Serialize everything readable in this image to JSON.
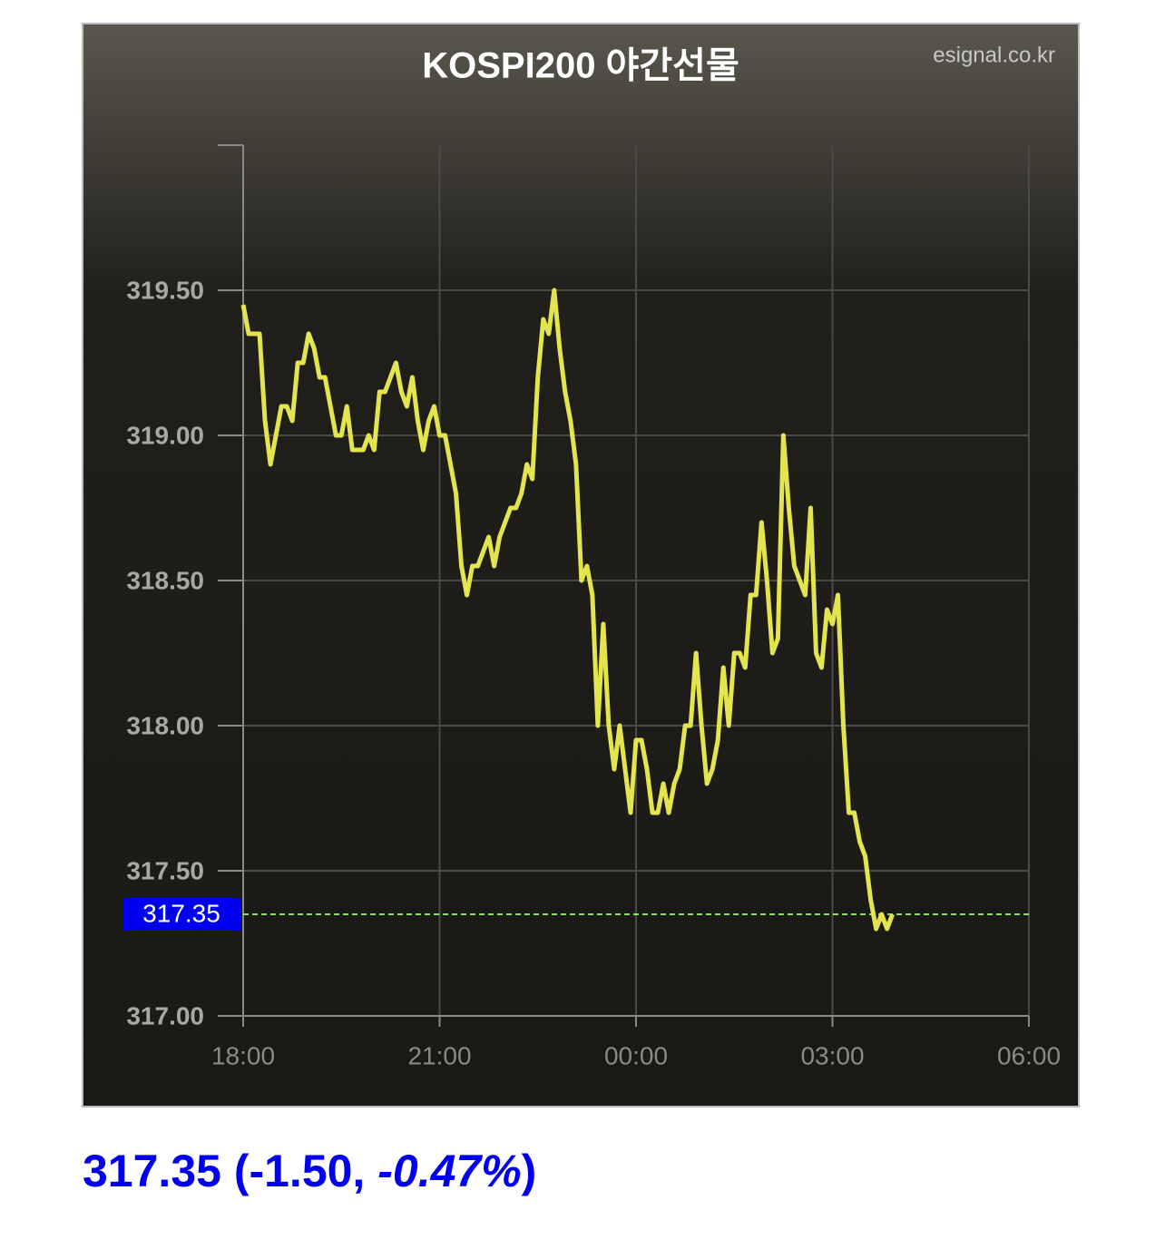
{
  "chart_data": {
    "type": "line",
    "title": "KOSPI200 야간선물",
    "source": "esignal.co.kr",
    "x": [
      "18:00",
      "18:05",
      "18:10",
      "18:15",
      "18:20",
      "18:25",
      "18:30",
      "18:35",
      "18:40",
      "18:45",
      "18:50",
      "18:55",
      "19:00",
      "19:05",
      "19:10",
      "19:15",
      "19:20",
      "19:25",
      "19:30",
      "19:35",
      "19:40",
      "19:45",
      "19:50",
      "19:55",
      "20:00",
      "20:05",
      "20:10",
      "20:15",
      "20:20",
      "20:25",
      "20:30",
      "20:35",
      "20:40",
      "20:45",
      "20:50",
      "20:55",
      "21:00",
      "21:05",
      "21:10",
      "21:15",
      "21:20",
      "21:25",
      "21:30",
      "21:35",
      "21:40",
      "21:45",
      "21:50",
      "21:55",
      "22:00",
      "22:05",
      "22:10",
      "22:15",
      "22:20",
      "22:25",
      "22:30",
      "22:35",
      "22:40",
      "22:45",
      "22:50",
      "22:55",
      "23:00",
      "23:05",
      "23:10",
      "23:15",
      "23:20",
      "23:25",
      "23:30",
      "23:35",
      "23:40",
      "23:45",
      "23:50",
      "23:55",
      "00:00",
      "00:05",
      "00:10",
      "00:15",
      "00:20",
      "00:25",
      "00:30",
      "00:35",
      "00:40",
      "00:45",
      "00:50",
      "00:55",
      "01:00",
      "01:05",
      "01:10",
      "01:15",
      "01:20",
      "01:25",
      "01:30",
      "01:35",
      "01:40",
      "01:45",
      "01:50",
      "01:55",
      "02:00",
      "02:05",
      "02:10",
      "02:15",
      "02:20",
      "02:25",
      "02:30",
      "02:35",
      "02:40",
      "02:45",
      "02:50",
      "02:55",
      "03:00",
      "03:05",
      "03:10",
      "03:15",
      "03:20",
      "03:25",
      "03:30",
      "03:35",
      "03:40",
      "03:45",
      "03:50",
      "03:55"
    ],
    "series": [
      {
        "color": "#e4e44e",
        "values": [
          319.45,
          319.35,
          319.35,
          319.35,
          319.05,
          318.9,
          319.0,
          319.1,
          319.1,
          319.05,
          319.25,
          319.25,
          319.35,
          319.3,
          319.2,
          319.2,
          319.1,
          319.0,
          319.0,
          319.1,
          318.95,
          318.95,
          318.95,
          319.0,
          318.95,
          319.15,
          319.15,
          319.2,
          319.25,
          319.15,
          319.1,
          319.2,
          319.05,
          318.95,
          319.05,
          319.1,
          319.0,
          319.0,
          318.9,
          318.8,
          318.55,
          318.45,
          318.55,
          318.55,
          318.6,
          318.65,
          318.55,
          318.65,
          318.7,
          318.75,
          318.75,
          318.8,
          318.9,
          318.85,
          319.2,
          319.4,
          319.35,
          319.5,
          319.3,
          319.15,
          319.05,
          318.9,
          318.5,
          318.55,
          318.45,
          318.0,
          318.35,
          318.0,
          317.85,
          318.0,
          317.85,
          317.7,
          317.95,
          317.95,
          317.85,
          317.7,
          317.7,
          317.8,
          317.7,
          317.8,
          317.85,
          318.0,
          318.0,
          318.25,
          318.0,
          317.8,
          317.85,
          317.95,
          318.2,
          318.0,
          318.25,
          318.25,
          318.2,
          318.45,
          318.45,
          318.7,
          318.5,
          318.25,
          318.3,
          319.0,
          318.75,
          318.55,
          318.5,
          318.45,
          318.75,
          318.25,
          318.2,
          318.4,
          318.35,
          318.45,
          318.0,
          317.7,
          317.7,
          317.6,
          317.55,
          317.4,
          317.3,
          317.35,
          317.3,
          317.35
        ]
      }
    ],
    "xlim": [
      "18:00",
      "06:00"
    ],
    "xticks": [
      "18:00",
      "21:00",
      "00:00",
      "03:00",
      "06:00"
    ],
    "ylim": [
      317,
      320
    ],
    "yticks": [
      {
        "value": 317,
        "label": "317.00"
      },
      {
        "value": 317.5,
        "label": "317.50"
      },
      {
        "value": 318,
        "label": "318.00"
      },
      {
        "value": 318.5,
        "label": "318.50"
      },
      {
        "value": 319,
        "label": "319.00"
      },
      {
        "value": 319.5,
        "label": "319.50"
      }
    ],
    "grid": true,
    "current": {
      "value": 317.35,
      "label": "317.35",
      "color": "#0000ee",
      "line_color": "#7ce85a"
    }
  },
  "footer": {
    "parts": [
      "317.35 (-1.50, ",
      "-0.47%",
      ")"
    ]
  }
}
